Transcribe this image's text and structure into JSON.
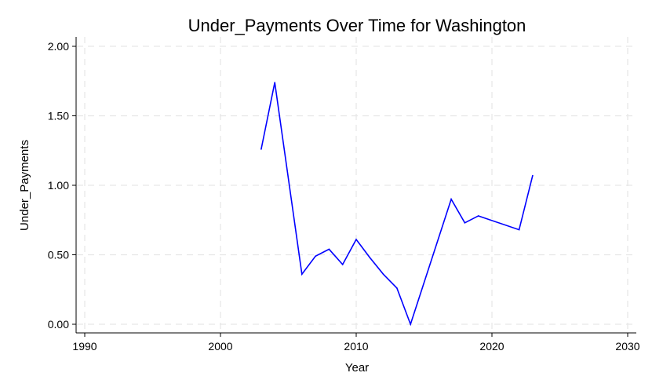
{
  "chart_data": {
    "type": "line",
    "title": "Under_Payments Over Time for Washington",
    "xlabel": "Year",
    "ylabel": "Under_Payments",
    "xlim": [
      1990,
      2030
    ],
    "ylim": [
      0,
      2
    ],
    "x_ticks": [
      1990,
      2000,
      2010,
      2020,
      2030
    ],
    "y_ticks": [
      "0.00",
      "0.50",
      "1.00",
      "1.50",
      "2.00"
    ],
    "grid": true,
    "line_color": "#0000ff",
    "series": [
      {
        "x": [
          2003,
          2004,
          2006,
          2007,
          2008,
          2009,
          2010,
          2011,
          2012,
          2013,
          2014,
          2017,
          2018,
          2019,
          2022,
          2023
        ],
        "values": [
          1.26,
          1.74,
          0.36,
          0.49,
          0.54,
          0.43,
          0.61,
          0.48,
          0.36,
          0.26,
          0.0,
          0.9,
          0.73,
          0.78,
          0.68,
          1.07
        ]
      }
    ]
  }
}
